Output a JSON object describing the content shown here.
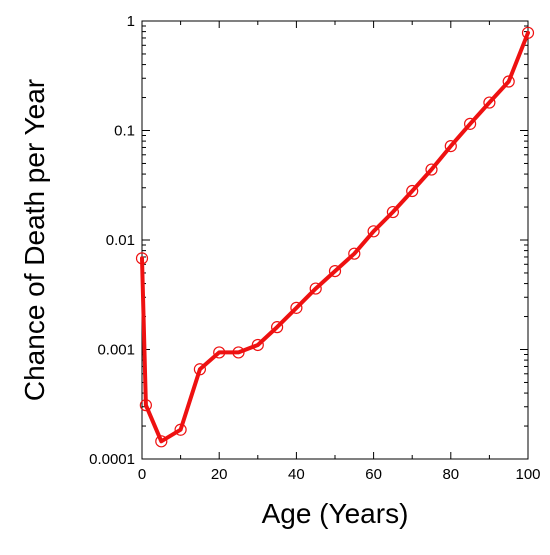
{
  "chart_data": {
    "type": "line",
    "title": "",
    "xlabel": "Age (Years)",
    "ylabel": "Chance of Death per Year",
    "x_scale": "linear",
    "y_scale": "log",
    "xlim": [
      0,
      100
    ],
    "ylim": [
      0.0001,
      1
    ],
    "x_ticks": [
      0,
      20,
      40,
      60,
      80,
      100
    ],
    "x_tick_labels": [
      "0",
      "20",
      "40",
      "60",
      "80",
      "100"
    ],
    "y_ticks": [
      0.0001,
      0.001,
      0.01,
      0.1,
      1
    ],
    "y_tick_labels": [
      "0.0001",
      "0.001",
      "0.01",
      "0.1",
      "1"
    ],
    "grid": false,
    "legend": "none",
    "line_color": "#ee1111",
    "marker": "open-circle",
    "series": [
      {
        "x": [
          0,
          1,
          5,
          10,
          15,
          20,
          25,
          30,
          35,
          40,
          45,
          50,
          55,
          60,
          65,
          70,
          75,
          80,
          85,
          90,
          95,
          100
        ],
        "values": [
          0.0068,
          0.00031,
          0.000145,
          0.000185,
          0.00066,
          0.00094,
          0.00094,
          0.0011,
          0.0016,
          0.0024,
          0.0036,
          0.0052,
          0.0075,
          0.012,
          0.018,
          0.028,
          0.044,
          0.072,
          0.115,
          0.18,
          0.28,
          0.78
        ]
      }
    ]
  }
}
